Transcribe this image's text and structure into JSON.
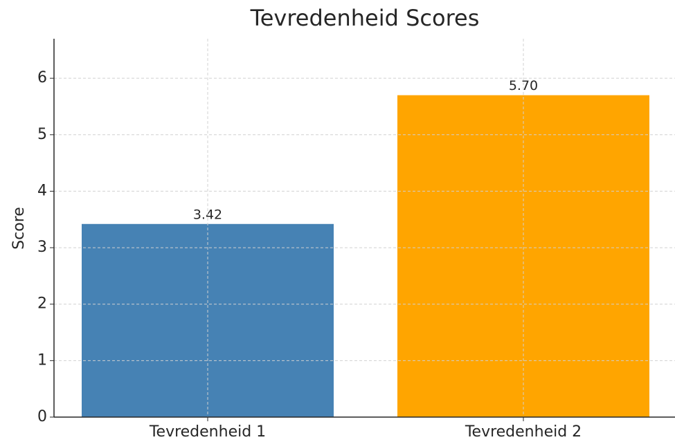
{
  "chart_data": {
    "type": "bar",
    "title": "Tevredenheid Scores",
    "ylabel": "Score",
    "categories": [
      "Tevredenheid 1",
      "Tevredenheid 2"
    ],
    "values": [
      3.42,
      5.7
    ],
    "value_labels": [
      "3.42",
      "5.70"
    ],
    "colors": [
      "#4682b4",
      "#ffa500"
    ],
    "ylim": [
      0,
      6.7
    ],
    "yticks": [
      0,
      1,
      2,
      3,
      4,
      5,
      6
    ],
    "grid": true
  }
}
